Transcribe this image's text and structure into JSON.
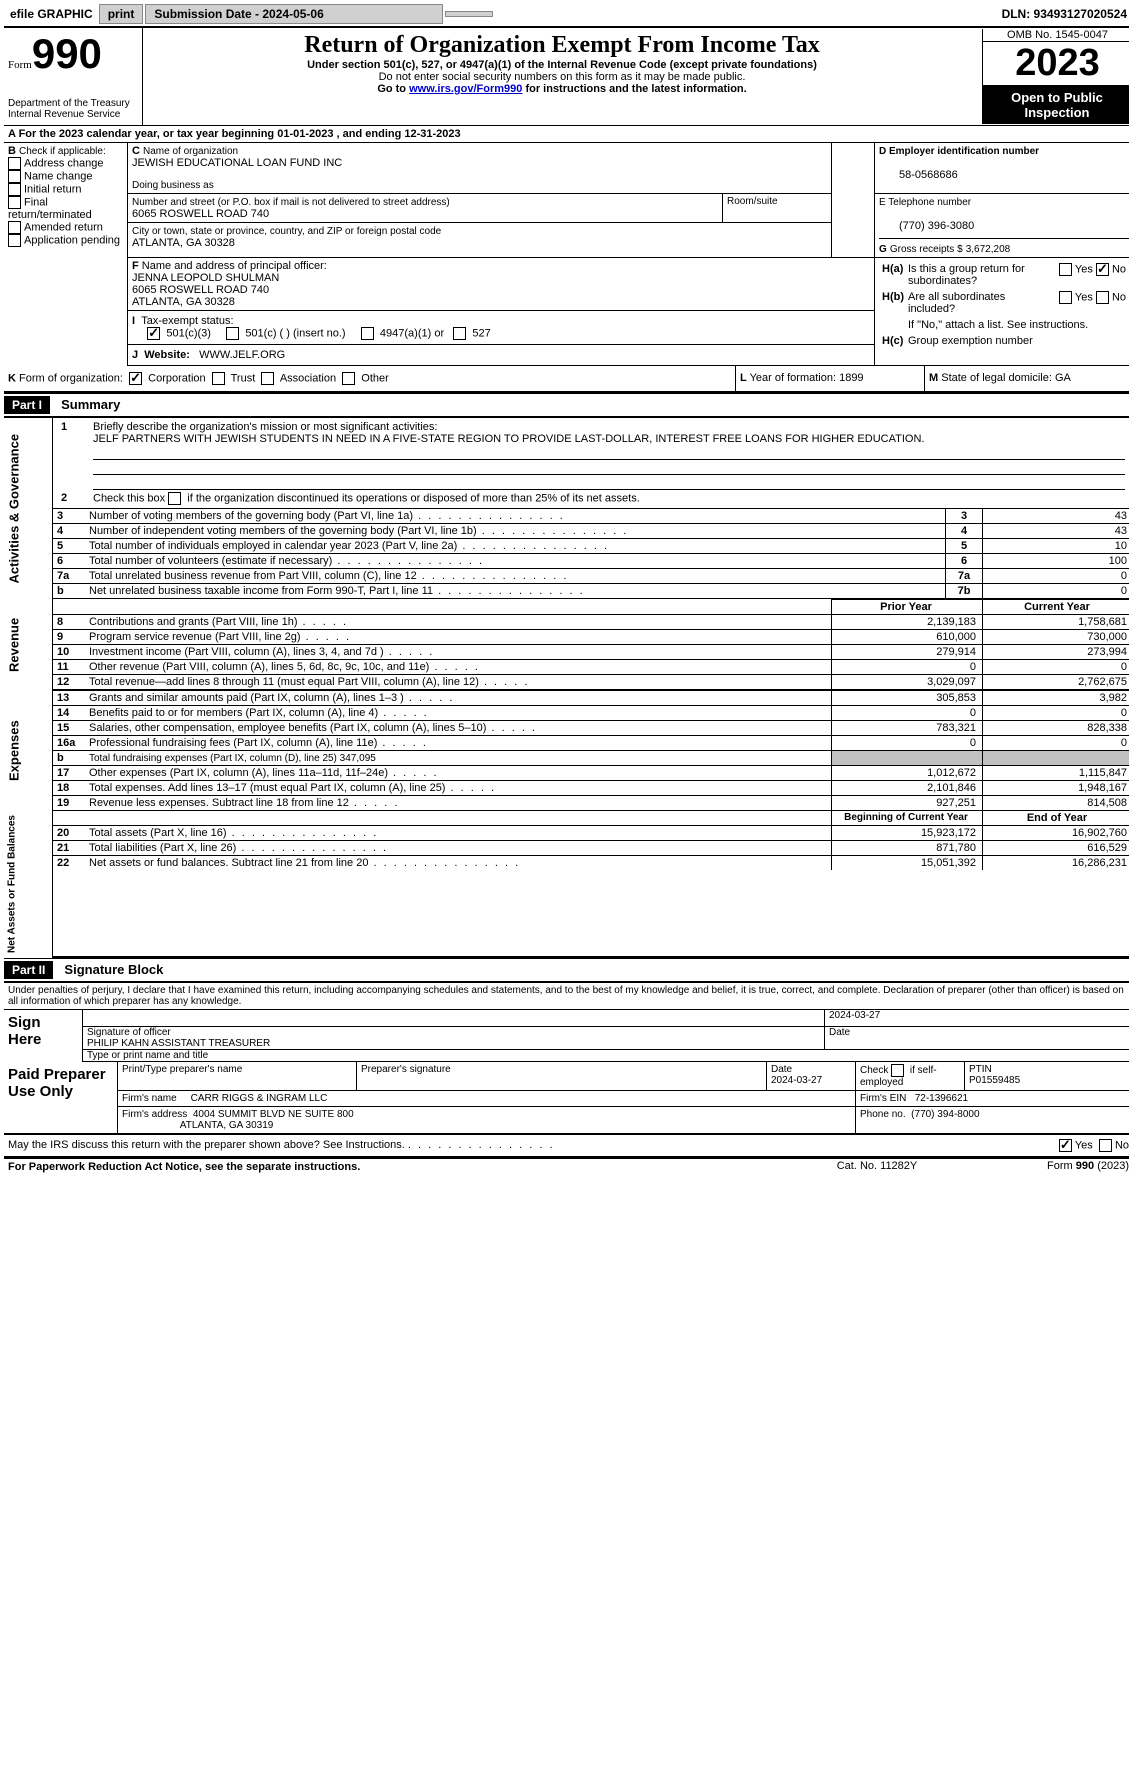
{
  "topbar": {
    "efile_label": "efile GRAPHIC",
    "print_btn": "print",
    "submission_label": "Submission Date - 2024-05-06",
    "dln_label": "DLN: 93493127020524"
  },
  "header": {
    "form_word": "Form",
    "form_num": "990",
    "dept": "Department of the Treasury",
    "irs": "Internal Revenue Service",
    "title": "Return of Organization Exempt From Income Tax",
    "subtitle": "Under section 501(c), 527, or 4947(a)(1) of the Internal Revenue Code (except private foundations)",
    "note1": "Do not enter social security numbers on this form as it may be made public.",
    "note2_pre": "Go to ",
    "note2_link": "www.irs.gov/Form990",
    "note2_post": " for instructions and the latest information.",
    "omb": "OMB No. 1545-0047",
    "year": "2023",
    "open_public": "Open to Public Inspection"
  },
  "line_a": {
    "text_pre": "A For the 2023 calendar year, or tax year beginning ",
    "begin": "01-01-2023",
    "mid": " , and ending ",
    "end": "12-31-2023"
  },
  "box_b": {
    "label": "B",
    "check_label": "Check if applicable:",
    "opts": [
      "Address change",
      "Name change",
      "Initial return",
      "Final return/terminated",
      "Amended return",
      "Application pending"
    ]
  },
  "box_c": {
    "label": "C",
    "name_label": "Name of organization",
    "name": "JEWISH EDUCATIONAL LOAN FUND INC",
    "dba_label": "Doing business as",
    "street_label": "Number and street (or P.O. box if mail is not delivered to street address)",
    "room_label": "Room/suite",
    "street": "6065 ROSWELL ROAD 740",
    "city_label": "City or town, state or province, country, and ZIP or foreign postal code",
    "city": "ATLANTA, GA  30328"
  },
  "box_d": {
    "label": "D  Employer identification number",
    "ein": "58-0568686"
  },
  "box_e": {
    "label": "E  Telephone number",
    "phone": "(770) 396-3080"
  },
  "box_g": {
    "label": "G",
    "text": "Gross receipts $",
    "val": "3,672,208"
  },
  "box_f": {
    "label": "F",
    "text": "Name and address of principal officer:",
    "name": "JENNA LEOPOLD SHULMAN",
    "addr1": "6065 ROSWELL ROAD 740",
    "addr2": "ATLANTA, GA  30328"
  },
  "box_h": {
    "a_label": "H(a)",
    "a_text": "Is this a group return for subordinates?",
    "b_label": "H(b)",
    "b_text": "Are all subordinates included?",
    "b_note": "If \"No,\" attach a list. See instructions.",
    "c_label": "H(c)",
    "c_text": "Group exemption number",
    "yes": "Yes",
    "no": "No"
  },
  "box_i": {
    "label": "I",
    "text": "Tax-exempt status:",
    "c3": "501(c)(3)",
    "c_other": "501(c) (  ) (insert no.)",
    "a1": "4947(a)(1) or",
    "s527": "527"
  },
  "box_j": {
    "label": "J",
    "text": "Website:",
    "val": "WWW.JELF.ORG"
  },
  "box_k": {
    "label": "K",
    "text": "Form of organization:",
    "corp": "Corporation",
    "trust": "Trust",
    "assoc": "Association",
    "other": "Other"
  },
  "box_l": {
    "label": "L",
    "text": "Year of formation:",
    "val": "1899"
  },
  "box_m": {
    "label": "M",
    "text": "State of legal domicile:",
    "val": "GA"
  },
  "part1": {
    "hdr": "Part I",
    "title": "Summary"
  },
  "summary": {
    "l1_label": "Briefly describe the organization's mission or most significant activities:",
    "l1_text": "JELF PARTNERS WITH JEWISH STUDENTS IN NEED IN A FIVE-STATE REGION TO PROVIDE LAST-DOLLAR, INTEREST FREE LOANS FOR HIGHER EDUCATION.",
    "l2": "Check this box        if the organization discontinued its operations or disposed of more than 25% of its net assets.",
    "lines_a": [
      {
        "n": "3",
        "t": "Number of voting members of the governing body (Part VI, line 1a)",
        "box": "3",
        "v": "43"
      },
      {
        "n": "4",
        "t": "Number of independent voting members of the governing body (Part VI, line 1b)",
        "box": "4",
        "v": "43"
      },
      {
        "n": "5",
        "t": "Total number of individuals employed in calendar year 2023 (Part V, line 2a)",
        "box": "5",
        "v": "10"
      },
      {
        "n": "6",
        "t": "Total number of volunteers (estimate if necessary)",
        "box": "6",
        "v": "100"
      },
      {
        "n": "7a",
        "t": "Total unrelated business revenue from Part VIII, column (C), line 12",
        "box": "7a",
        "v": "0"
      },
      {
        "n": "b",
        "t": "Net unrelated business taxable income from Form 990-T, Part I, line 11",
        "box": "7b",
        "v": "0"
      }
    ],
    "py_hdr": "Prior Year",
    "cy_hdr": "Current Year",
    "rev_lines": [
      {
        "n": "8",
        "t": "Contributions and grants (Part VIII, line 1h)",
        "py": "2,139,183",
        "cy": "1,758,681"
      },
      {
        "n": "9",
        "t": "Program service revenue (Part VIII, line 2g)",
        "py": "610,000",
        "cy": "730,000"
      },
      {
        "n": "10",
        "t": "Investment income (Part VIII, column (A), lines 3, 4, and 7d )",
        "py": "279,914",
        "cy": "273,994"
      },
      {
        "n": "11",
        "t": "Other revenue (Part VIII, column (A), lines 5, 6d, 8c, 9c, 10c, and 11e)",
        "py": "0",
        "cy": "0"
      },
      {
        "n": "12",
        "t": "Total revenue—add lines 8 through 11 (must equal Part VIII, column (A), line 12)",
        "py": "3,029,097",
        "cy": "2,762,675"
      }
    ],
    "exp_lines": [
      {
        "n": "13",
        "t": "Grants and similar amounts paid (Part IX, column (A), lines 1–3 )",
        "py": "305,853",
        "cy": "3,982"
      },
      {
        "n": "14",
        "t": "Benefits paid to or for members (Part IX, column (A), line 4)",
        "py": "0",
        "cy": "0"
      },
      {
        "n": "15",
        "t": "Salaries, other compensation, employee benefits (Part IX, column (A), lines 5–10)",
        "py": "783,321",
        "cy": "828,338"
      },
      {
        "n": "16a",
        "t": "Professional fundraising fees (Part IX, column (A), line 11e)",
        "py": "0",
        "cy": "0"
      },
      {
        "n": "b",
        "t": "Total fundraising expenses (Part IX, column (D), line 25) 347,095",
        "py": "",
        "cy": "",
        "gray": true
      },
      {
        "n": "17",
        "t": "Other expenses (Part IX, column (A), lines 11a–11d, 11f–24e)",
        "py": "1,012,672",
        "cy": "1,115,847"
      },
      {
        "n": "18",
        "t": "Total expenses. Add lines 13–17 (must equal Part IX, column (A), line 25)",
        "py": "2,101,846",
        "cy": "1,948,167"
      },
      {
        "n": "19",
        "t": "Revenue less expenses. Subtract line 18 from line 12",
        "py": "927,251",
        "cy": "814,508"
      }
    ],
    "boy_hdr": "Beginning of Current Year",
    "eoy_hdr": "End of Year",
    "na_lines": [
      {
        "n": "20",
        "t": "Total assets (Part X, line 16)",
        "py": "15,923,172",
        "cy": "16,902,760"
      },
      {
        "n": "21",
        "t": "Total liabilities (Part X, line 26)",
        "py": "871,780",
        "cy": "616,529"
      },
      {
        "n": "22",
        "t": "Net assets or fund balances. Subtract line 21 from line 20",
        "py": "15,051,392",
        "cy": "16,286,231"
      }
    ]
  },
  "vert": {
    "ag": "Activities & Governance",
    "rev": "Revenue",
    "exp": "Expenses",
    "na": "Net Assets or Fund Balances"
  },
  "part2": {
    "hdr": "Part II",
    "title": "Signature Block",
    "decl": "Under penalties of perjury, I declare that I have examined this return, including accompanying schedules and statements, and to the best of my knowledge and belief, it is true, correct, and complete. Declaration of preparer (other than officer) is based on all information of which preparer has any knowledge."
  },
  "sign": {
    "sign_here": "Sign Here",
    "sig_officer": "Signature of officer",
    "officer_name": "PHILIP KAHN  ASSISTANT TREASURER",
    "type_name": "Type or print name and title",
    "date_label": "Date",
    "date_val": "2024-03-27"
  },
  "paid": {
    "label": "Paid Preparer Use Only",
    "pp_name_label": "Print/Type preparer's name",
    "pp_sig_label": "Preparer's signature",
    "date_label": "Date",
    "date_val": "2024-03-27",
    "check_label": "Check         if self-employed",
    "ptin_label": "PTIN",
    "ptin_val": "P01559485",
    "firm_name_label": "Firm's name",
    "firm_name": "CARR RIGGS & INGRAM LLC",
    "firm_ein_label": "Firm's EIN",
    "firm_ein": "72-1396621",
    "firm_addr_label": "Firm's address",
    "firm_addr1": "4004 SUMMIT BLVD NE SUITE 800",
    "firm_addr2": "ATLANTA, GA  30319",
    "phone_label": "Phone no.",
    "phone": "(770) 394-8000",
    "discuss": "May the IRS discuss this return with the preparer shown above? See Instructions."
  },
  "footer": {
    "pra": "For Paperwork Reduction Act Notice, see the separate instructions.",
    "cat": "Cat. No. 11282Y",
    "form": "Form 990 (2023)"
  }
}
